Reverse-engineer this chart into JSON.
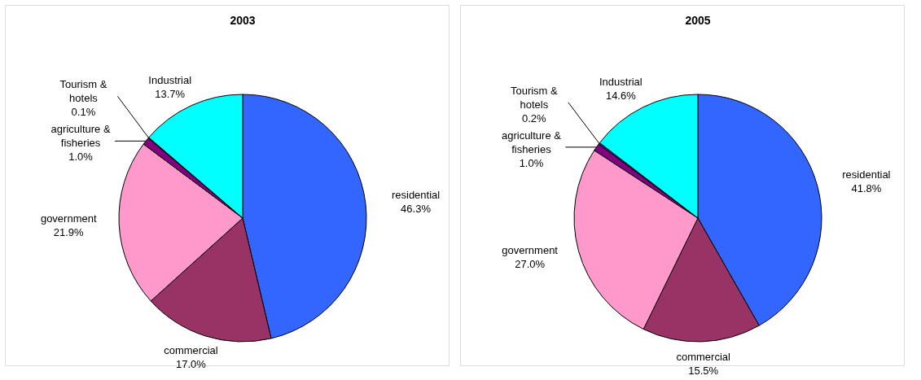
{
  "chart_data": [
    {
      "type": "pie",
      "title": "2003",
      "categories": [
        "residential",
        "commercial",
        "government",
        "agriculture & fisheries",
        "Tourism & hotels",
        "Industrial"
      ],
      "values": [
        46.3,
        17.0,
        21.9,
        1.0,
        0.1,
        13.7
      ],
      "value_labels": [
        "46.3%",
        "17.0%",
        "21.9%",
        "1.0%",
        "0.1%",
        "13.7%"
      ],
      "colors": [
        "#3366ff",
        "#993366",
        "#ff99cc",
        "#800080",
        "#333399",
        "#00ffff"
      ]
    },
    {
      "type": "pie",
      "title": "2005",
      "categories": [
        "residential",
        "commercial",
        "government",
        "agriculture & fisheries",
        "Tourism & hotels",
        "Industrial"
      ],
      "values": [
        41.8,
        15.5,
        27.0,
        1.0,
        0.2,
        14.6
      ],
      "value_labels": [
        "41.8%",
        "15.5%",
        "27.0%",
        "1.0%",
        "0.2%",
        "14.6%"
      ],
      "colors": [
        "#3366ff",
        "#993366",
        "#ff99cc",
        "#800080",
        "#333399",
        "#00ffff"
      ]
    }
  ]
}
